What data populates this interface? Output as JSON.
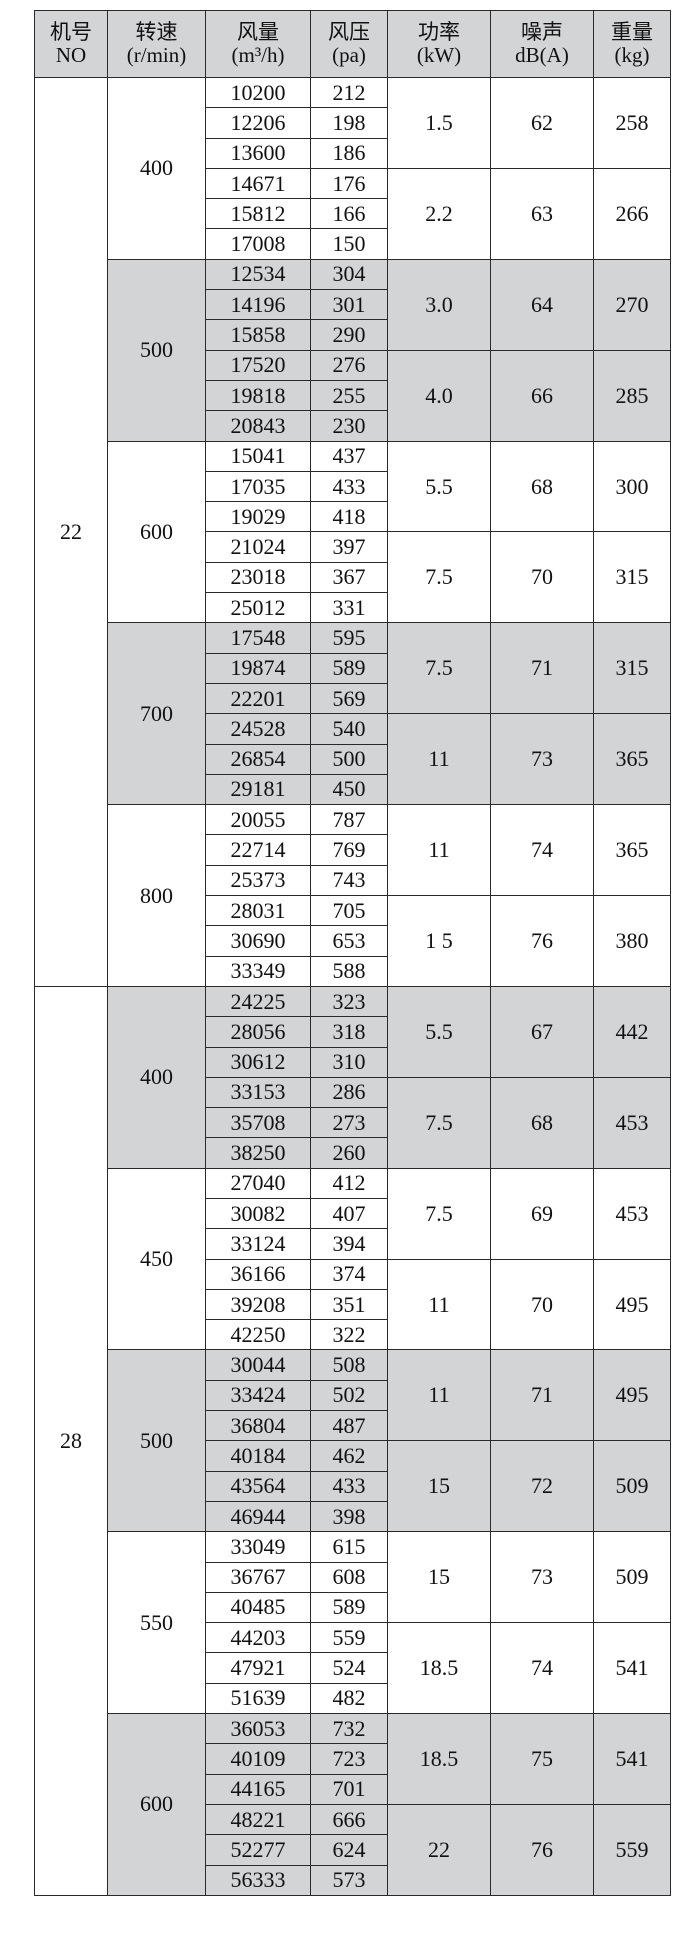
{
  "header": [
    {
      "title": "机号",
      "unit": "NO"
    },
    {
      "title": "转速",
      "unit": "(r/min)"
    },
    {
      "title": "风量",
      "unit": "(m³/h)"
    },
    {
      "title": "风压",
      "unit": "(pa)"
    },
    {
      "title": "功率",
      "unit": "(kW)"
    },
    {
      "title": "噪声",
      "unit": "dB(A)"
    },
    {
      "title": "重量",
      "unit": "(kg)"
    }
  ],
  "shade_color": "#d3d4d6",
  "groups": [
    {
      "no": "22",
      "speeds": [
        {
          "rpm": "400",
          "shaded": false,
          "motors": [
            {
              "power": "1.5",
              "noise": "62",
              "weight": "258",
              "rows": [
                [
                  "10200",
                  "212"
                ],
                [
                  "12206",
                  "198"
                ],
                [
                  "13600",
                  "186"
                ]
              ]
            },
            {
              "power": "2.2",
              "noise": "63",
              "weight": "266",
              "rows": [
                [
                  "14671",
                  "176"
                ],
                [
                  "15812",
                  "166"
                ],
                [
                  "17008",
                  "150"
                ]
              ]
            }
          ]
        },
        {
          "rpm": "500",
          "shaded": true,
          "motors": [
            {
              "power": "3.0",
              "noise": "64",
              "weight": "270",
              "rows": [
                [
                  "12534",
                  "304"
                ],
                [
                  "14196",
                  "301"
                ],
                [
                  "15858",
                  "290"
                ]
              ]
            },
            {
              "power": "4.0",
              "noise": "66",
              "weight": "285",
              "rows": [
                [
                  "17520",
                  "276"
                ],
                [
                  "19818",
                  "255"
                ],
                [
                  "20843",
                  "230"
                ]
              ]
            }
          ]
        },
        {
          "rpm": "600",
          "shaded": false,
          "motors": [
            {
              "power": "5.5",
              "noise": "68",
              "weight": "300",
              "rows": [
                [
                  "15041",
                  "437"
                ],
                [
                  "17035",
                  "433"
                ],
                [
                  "19029",
                  "418"
                ]
              ]
            },
            {
              "power": "7.5",
              "noise": "70",
              "weight": "315",
              "rows": [
                [
                  "21024",
                  "397"
                ],
                [
                  "23018",
                  "367"
                ],
                [
                  "25012",
                  "331"
                ]
              ]
            }
          ]
        },
        {
          "rpm": "700",
          "shaded": true,
          "motors": [
            {
              "power": "7.5",
              "noise": "71",
              "weight": "315",
              "rows": [
                [
                  "17548",
                  "595"
                ],
                [
                  "19874",
                  "589"
                ],
                [
                  "22201",
                  "569"
                ]
              ]
            },
            {
              "power": "11",
              "noise": "73",
              "weight": "365",
              "rows": [
                [
                  "24528",
                  "540"
                ],
                [
                  "26854",
                  "500"
                ],
                [
                  "29181",
                  "450"
                ]
              ]
            }
          ]
        },
        {
          "rpm": "800",
          "shaded": false,
          "motors": [
            {
              "power": "11",
              "noise": "74",
              "weight": "365",
              "rows": [
                [
                  "20055",
                  "787"
                ],
                [
                  "22714",
                  "769"
                ],
                [
                  "25373",
                  "743"
                ]
              ]
            },
            {
              "power": "1 5",
              "noise": "76",
              "weight": "380",
              "rows": [
                [
                  "28031",
                  "705"
                ],
                [
                  "30690",
                  "653"
                ],
                [
                  "33349",
                  "588"
                ]
              ]
            }
          ]
        }
      ]
    },
    {
      "no": "28",
      "speeds": [
        {
          "rpm": "400",
          "shaded": true,
          "motors": [
            {
              "power": "5.5",
              "noise": "67",
              "weight": "442",
              "rows": [
                [
                  "24225",
                  "323"
                ],
                [
                  "28056",
                  "318"
                ],
                [
                  "30612",
                  "310"
                ]
              ]
            },
            {
              "power": "7.5",
              "noise": "68",
              "weight": "453",
              "rows": [
                [
                  "33153",
                  "286"
                ],
                [
                  "35708",
                  "273"
                ],
                [
                  "38250",
                  "260"
                ]
              ]
            }
          ]
        },
        {
          "rpm": "450",
          "shaded": false,
          "motors": [
            {
              "power": "7.5",
              "noise": "69",
              "weight": "453",
              "rows": [
                [
                  "27040",
                  "412"
                ],
                [
                  "30082",
                  "407"
                ],
                [
                  "33124",
                  "394"
                ]
              ]
            },
            {
              "power": "11",
              "noise": "70",
              "weight": "495",
              "rows": [
                [
                  "36166",
                  "374"
                ],
                [
                  "39208",
                  "351"
                ],
                [
                  "42250",
                  "322"
                ]
              ]
            }
          ]
        },
        {
          "rpm": "500",
          "shaded": true,
          "motors": [
            {
              "power": "11",
              "noise": "71",
              "weight": "495",
              "rows": [
                [
                  "30044",
                  "508"
                ],
                [
                  "33424",
                  "502"
                ],
                [
                  "36804",
                  "487"
                ]
              ]
            },
            {
              "power": "15",
              "noise": "72",
              "weight": "509",
              "rows": [
                [
                  "40184",
                  "462"
                ],
                [
                  "43564",
                  "433"
                ],
                [
                  "46944",
                  "398"
                ]
              ]
            }
          ]
        },
        {
          "rpm": "550",
          "shaded": false,
          "motors": [
            {
              "power": "15",
              "noise": "73",
              "weight": "509",
              "rows": [
                [
                  "33049",
                  "615"
                ],
                [
                  "36767",
                  "608"
                ],
                [
                  "40485",
                  "589"
                ]
              ]
            },
            {
              "power": "18.5",
              "noise": "74",
              "weight": "541",
              "rows": [
                [
                  "44203",
                  "559"
                ],
                [
                  "47921",
                  "524"
                ],
                [
                  "51639",
                  "482"
                ]
              ]
            }
          ]
        },
        {
          "rpm": "600",
          "shaded": true,
          "motors": [
            {
              "power": "18.5",
              "noise": "75",
              "weight": "541",
              "rows": [
                [
                  "36053",
                  "732"
                ],
                [
                  "40109",
                  "723"
                ],
                [
                  "44165",
                  "701"
                ]
              ]
            },
            {
              "power": "22",
              "noise": "76",
              "weight": "559",
              "rows": [
                [
                  "48221",
                  "666"
                ],
                [
                  "52277",
                  "624"
                ],
                [
                  "56333",
                  "573"
                ]
              ]
            }
          ]
        }
      ]
    }
  ]
}
